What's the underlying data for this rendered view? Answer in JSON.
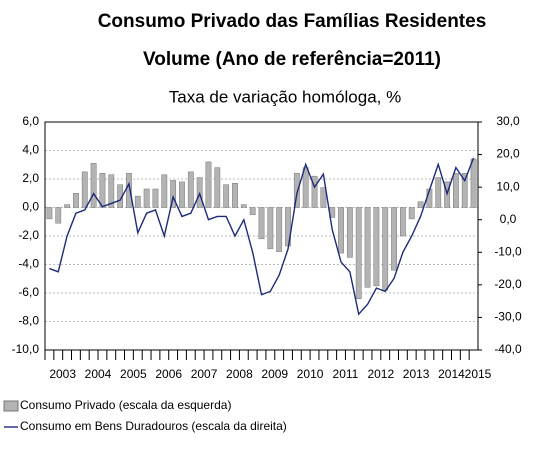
{
  "chart_data": {
    "type": "bar-line",
    "title": "Consumo Privado das Famílias Residentes",
    "subtitle": "Volume (Ano de referência=2011)",
    "y_label": "Taxa de variação homóloga, %",
    "categories": [
      null,
      "2003",
      null,
      null,
      null,
      "2004",
      null,
      null,
      null,
      "2005",
      null,
      null,
      null,
      "2006",
      null,
      null,
      null,
      "2007",
      null,
      null,
      null,
      "2008",
      null,
      null,
      null,
      "2009",
      null,
      null,
      null,
      "2010",
      null,
      null,
      null,
      "2011",
      null,
      null,
      null,
      "2012",
      null,
      null,
      null,
      "2013",
      null,
      null,
      null,
      "2014",
      null,
      null,
      "2015"
    ],
    "series": [
      {
        "name": "Consumo Privado (escala da esquerda)",
        "color": "#b3b3b3",
        "type": "bar",
        "values": [
          -0.8,
          -1.1,
          0.2,
          1.0,
          2.5,
          3.1,
          2.4,
          2.3,
          1.6,
          2.4,
          0.8,
          1.3,
          1.3,
          2.3,
          1.9,
          1.8,
          2.5,
          2.1,
          3.2,
          2.8,
          1.6,
          1.7,
          0.2,
          -0.5,
          -2.2,
          -2.9,
          -3.1,
          -2.7,
          2.4,
          2.8,
          2.2,
          1.4,
          -0.7,
          -3.2,
          -3.5,
          -6.4,
          -5.6,
          -5.5,
          -5.8,
          -4.4,
          -2.0,
          -0.8,
          0.4,
          1.3,
          2.1,
          1.8,
          2.4,
          2.4,
          3.4
        ]
      },
      {
        "name": "Consumo em Bens Duradouros (escala da direita)",
        "color": "#1f2a7a",
        "type": "line",
        "axis": "y2",
        "values": [
          -15,
          -16,
          -5,
          2,
          3,
          8,
          4,
          5,
          6,
          11,
          -4,
          2,
          3,
          -5,
          7,
          1,
          2,
          8,
          0,
          1,
          1,
          -5,
          0,
          -10,
          -23,
          -22,
          -17,
          -9,
          8,
          17,
          10,
          14,
          -3,
          -13,
          -16,
          -29,
          -26,
          -21,
          -22,
          -18,
          -10,
          -5,
          1,
          9,
          17,
          8,
          16,
          12,
          19
        ]
      }
    ],
    "ylim": [
      -10,
      6
    ],
    "yticks": [
      {
        "value": -10,
        "label": "-10,0"
      },
      {
        "value": -8,
        "label": "-8,0"
      },
      {
        "value": -6,
        "label": "-6,0"
      },
      {
        "value": -4,
        "label": "-4,0"
      },
      {
        "value": -2,
        "label": "-2,0"
      },
      {
        "value": 0,
        "label": "0,0"
      },
      {
        "value": 2,
        "label": "2,0"
      },
      {
        "value": 4,
        "label": "4,0"
      },
      {
        "value": 6,
        "label": "6,0"
      }
    ],
    "y2lim": [
      -40,
      30
    ],
    "y2ticks": [
      {
        "value": -40,
        "label": "-40,0"
      },
      {
        "value": -30,
        "label": "-30,0"
      },
      {
        "value": -20,
        "label": "-20,0"
      },
      {
        "value": -10,
        "label": "-10,0"
      },
      {
        "value": 0,
        "label": "0,0"
      },
      {
        "value": 10,
        "label": "10,0"
      },
      {
        "value": 20,
        "label": "20,0"
      },
      {
        "value": 30,
        "label": "30,0"
      }
    ],
    "grid": true
  }
}
